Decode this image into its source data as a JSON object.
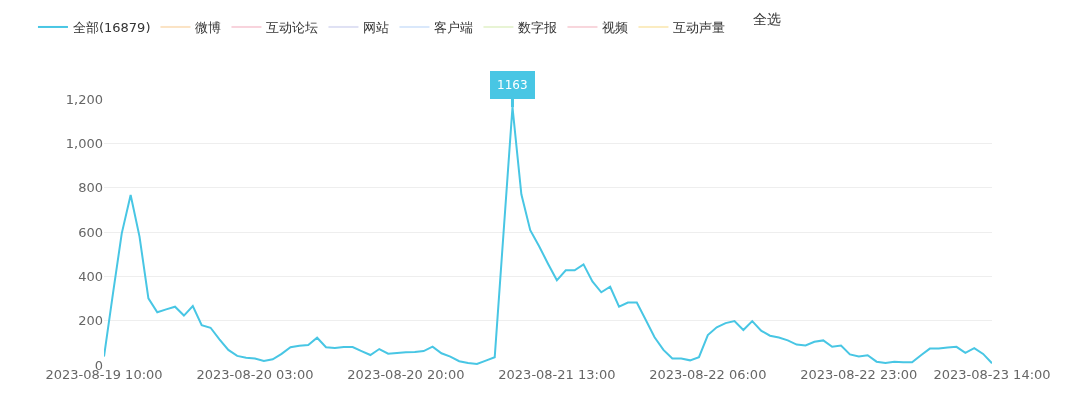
{
  "chart_data": {
    "type": "line",
    "legend": "top left",
    "grid": "y",
    "line_style": "solid",
    "ylim": [
      0,
      1200
    ],
    "yticks": [
      {
        "value": 0,
        "label": "0"
      },
      {
        "value": 200,
        "label": "200"
      },
      {
        "value": 400,
        "label": "400"
      },
      {
        "value": 600,
        "label": "600"
      },
      {
        "value": 800,
        "label": "800"
      },
      {
        "value": 1000,
        "label": "1,000"
      },
      {
        "value": 1200,
        "label": "1,200"
      }
    ],
    "xlim": [
      "2023-08-19T10:00",
      "2023-08-23T14:00"
    ],
    "xticks": [
      {
        "value": "2023-08-19T10:00",
        "label": "2023-08-19 10:00"
      },
      {
        "value": "2023-08-20T03:00",
        "label": "2023-08-20 03:00"
      },
      {
        "value": "2023-08-20T20:00",
        "label": "2023-08-20 20:00"
      },
      {
        "value": "2023-08-21T13:00",
        "label": "2023-08-21 13:00"
      },
      {
        "value": "2023-08-22T06:00",
        "label": "2023-08-22 06:00"
      },
      {
        "value": "2023-08-22T23:00",
        "label": "2023-08-22 23:00"
      },
      {
        "value": "2023-08-23T14:00",
        "label": "2023-08-23 14:00"
      }
    ],
    "x": [
      "2023-08-19T10:00",
      "2023-08-19T11:00",
      "2023-08-19T12:00",
      "2023-08-19T13:00",
      "2023-08-19T14:00",
      "2023-08-19T15:00",
      "2023-08-19T16:00",
      "2023-08-19T17:00",
      "2023-08-19T18:00",
      "2023-08-19T19:00",
      "2023-08-19T20:00",
      "2023-08-19T21:00",
      "2023-08-19T22:00",
      "2023-08-19T23:00",
      "2023-08-20T00:00",
      "2023-08-20T01:00",
      "2023-08-20T02:00",
      "2023-08-20T03:00",
      "2023-08-20T04:00",
      "2023-08-20T05:00",
      "2023-08-20T06:00",
      "2023-08-20T07:00",
      "2023-08-20T08:00",
      "2023-08-20T09:00",
      "2023-08-20T10:00",
      "2023-08-20T11:00",
      "2023-08-20T12:00",
      "2023-08-20T13:00",
      "2023-08-20T14:00",
      "2023-08-20T15:00",
      "2023-08-20T16:00",
      "2023-08-20T17:00",
      "2023-08-20T18:00",
      "2023-08-20T19:00",
      "2023-08-20T20:00",
      "2023-08-20T21:00",
      "2023-08-20T22:00",
      "2023-08-20T23:00",
      "2023-08-21T00:00",
      "2023-08-21T01:00",
      "2023-08-21T02:00",
      "2023-08-21T03:00",
      "2023-08-21T04:00",
      "2023-08-21T05:00",
      "2023-08-21T06:00",
      "2023-08-21T07:00",
      "2023-08-21T08:00",
      "2023-08-21T09:00",
      "2023-08-21T10:00",
      "2023-08-21T11:00",
      "2023-08-21T12:00",
      "2023-08-21T13:00",
      "2023-08-21T14:00",
      "2023-08-21T15:00",
      "2023-08-21T16:00",
      "2023-08-21T17:00",
      "2023-08-21T18:00",
      "2023-08-21T19:00",
      "2023-08-21T20:00",
      "2023-08-21T21:00",
      "2023-08-21T22:00",
      "2023-08-21T23:00",
      "2023-08-22T00:00",
      "2023-08-22T01:00",
      "2023-08-22T02:00",
      "2023-08-22T03:00",
      "2023-08-22T04:00",
      "2023-08-22T05:00",
      "2023-08-22T06:00",
      "2023-08-22T07:00",
      "2023-08-22T08:00",
      "2023-08-22T09:00",
      "2023-08-22T10:00",
      "2023-08-22T11:00",
      "2023-08-22T12:00",
      "2023-08-22T13:00",
      "2023-08-22T14:00",
      "2023-08-22T15:00",
      "2023-08-22T16:00",
      "2023-08-22T17:00",
      "2023-08-22T18:00",
      "2023-08-22T19:00",
      "2023-08-22T20:00",
      "2023-08-22T21:00",
      "2023-08-22T22:00",
      "2023-08-22T23:00",
      "2023-08-23T00:00",
      "2023-08-23T01:00",
      "2023-08-23T02:00",
      "2023-08-23T03:00",
      "2023-08-23T04:00",
      "2023-08-23T05:00",
      "2023-08-23T06:00",
      "2023-08-23T07:00",
      "2023-08-23T08:00",
      "2023-08-23T09:00",
      "2023-08-23T10:00",
      "2023-08-23T11:00",
      "2023-08-23T12:00",
      "2023-08-23T13:00",
      "2023-08-23T14:00"
    ],
    "series": [
      {
        "name": "全部(16879)",
        "color": "#48c6e4",
        "values": [
          38,
          320,
          594,
          767,
          579,
          301,
          238,
          251,
          263,
          223,
          266,
          180,
          168,
          116,
          68,
          41,
          33,
          29,
          18,
          26,
          50,
          80,
          87,
          90,
          123,
          80,
          77,
          81,
          81,
          63,
          45,
          72,
          51,
          54,
          57,
          59,
          63,
          83,
          53,
          38,
          17,
          9,
          5,
          20,
          35,
          600,
          1163,
          770,
          608,
          536,
          457,
          382,
          427,
          427,
          454,
          377,
          328,
          353,
          263,
          282,
          282,
          204,
          125,
          68,
          29,
          29,
          21,
          35,
          135,
          170,
          189,
          198,
          158,
          198,
          155,
          132,
          124,
          111,
          92,
          88,
          105,
          111,
          82,
          88,
          48,
          38,
          44,
          15,
          9,
          15,
          12,
          12,
          44,
          74,
          74,
          79,
          82,
          55,
          76,
          50,
          8
        ]
      },
      {
        "name": "微博",
        "color": "#fbe3c4",
        "values": [
          null,
          null,
          null,
          null,
          null,
          null,
          null,
          null,
          null,
          null,
          null,
          null,
          null,
          null,
          null,
          null,
          null,
          null,
          null,
          null,
          null,
          null,
          null,
          null,
          null,
          null,
          null,
          null,
          null,
          null,
          null,
          null,
          null,
          null,
          null,
          null,
          null,
          null,
          null,
          null,
          null,
          null,
          null,
          null,
          null,
          null,
          null,
          null,
          null,
          null,
          null,
          null,
          null,
          null,
          null,
          null,
          null,
          null,
          null,
          null,
          null,
          null,
          null,
          null,
          null,
          null,
          null,
          null,
          null,
          null,
          null,
          null,
          null,
          null,
          null,
          null,
          null,
          null,
          null,
          null,
          null,
          null,
          null,
          null,
          null,
          null,
          null,
          null,
          null,
          null,
          null,
          null,
          null,
          null,
          null,
          null,
          null,
          null,
          null,
          null,
          null
        ]
      },
      {
        "name": "互动论坛",
        "color": "#f8d3dc",
        "values": [
          null,
          null,
          null,
          null,
          null,
          null,
          null,
          null,
          null,
          null,
          null,
          null,
          null,
          null,
          null,
          null,
          null,
          null,
          null,
          null,
          null,
          null,
          null,
          null,
          null,
          null,
          null,
          null,
          null,
          null,
          null,
          null,
          null,
          null,
          null,
          null,
          null,
          null,
          null,
          null,
          null,
          null,
          null,
          null,
          null,
          null,
          null,
          null,
          null,
          null,
          null,
          null,
          null,
          null,
          null,
          null,
          null,
          null,
          null,
          null,
          null,
          null,
          null,
          null,
          null,
          null,
          null,
          null,
          null,
          null,
          null,
          null,
          null,
          null,
          null,
          null,
          null,
          null,
          null,
          null,
          null,
          null,
          null,
          null,
          null,
          null,
          null,
          null,
          null,
          null,
          null,
          null,
          null,
          null,
          null,
          null,
          null,
          null,
          null,
          null,
          null
        ]
      },
      {
        "name": "网站",
        "color": "#dfe1f4",
        "values": [
          null,
          null,
          null,
          null,
          null,
          null,
          null,
          null,
          null,
          null,
          null,
          null,
          null,
          null,
          null,
          null,
          null,
          null,
          null,
          null,
          null,
          null,
          null,
          null,
          null,
          null,
          null,
          null,
          null,
          null,
          null,
          null,
          null,
          null,
          null,
          null,
          null,
          null,
          null,
          null,
          null,
          null,
          null,
          null,
          null,
          null,
          null,
          null,
          null,
          null,
          null,
          null,
          null,
          null,
          null,
          null,
          null,
          null,
          null,
          null,
          null,
          null,
          null,
          null,
          null,
          null,
          null,
          null,
          null,
          null,
          null,
          null,
          null,
          null,
          null,
          null,
          null,
          null,
          null,
          null,
          null,
          null,
          null,
          null,
          null,
          null,
          null,
          null,
          null,
          null,
          null,
          null,
          null,
          null,
          null,
          null,
          null,
          null,
          null,
          null,
          null
        ]
      },
      {
        "name": "客户端",
        "color": "#d9e8fb",
        "values": [
          null,
          null,
          null,
          null,
          null,
          null,
          null,
          null,
          null,
          null,
          null,
          null,
          null,
          null,
          null,
          null,
          null,
          null,
          null,
          null,
          null,
          null,
          null,
          null,
          null,
          null,
          null,
          null,
          null,
          null,
          null,
          null,
          null,
          null,
          null,
          null,
          null,
          null,
          null,
          null,
          null,
          null,
          null,
          null,
          null,
          null,
          null,
          null,
          null,
          null,
          null,
          null,
          null,
          null,
          null,
          null,
          null,
          null,
          null,
          null,
          null,
          null,
          null,
          null,
          null,
          null,
          null,
          null,
          null,
          null,
          null,
          null,
          null,
          null,
          null,
          null,
          null,
          null,
          null,
          null,
          null,
          null,
          null,
          null,
          null,
          null,
          null,
          null,
          null,
          null,
          null,
          null,
          null,
          null,
          null,
          null,
          null,
          null,
          null,
          null,
          null
        ]
      },
      {
        "name": "数字报",
        "color": "#e8f4d4",
        "values": [
          null,
          null,
          null,
          null,
          null,
          null,
          null,
          null,
          null,
          null,
          null,
          null,
          null,
          null,
          null,
          null,
          null,
          null,
          null,
          null,
          null,
          null,
          null,
          null,
          null,
          null,
          null,
          null,
          null,
          null,
          null,
          null,
          null,
          null,
          null,
          null,
          null,
          null,
          null,
          null,
          null,
          null,
          null,
          null,
          null,
          null,
          null,
          null,
          null,
          null,
          null,
          null,
          null,
          null,
          null,
          null,
          null,
          null,
          null,
          null,
          null,
          null,
          null,
          null,
          null,
          null,
          null,
          null,
          null,
          null,
          null,
          null,
          null,
          null,
          null,
          null,
          null,
          null,
          null,
          null,
          null,
          null,
          null,
          null,
          null,
          null,
          null,
          null,
          null,
          null,
          null,
          null,
          null,
          null,
          null,
          null,
          null,
          null,
          null,
          null,
          null
        ]
      },
      {
        "name": "视频",
        "color": "#f8d6dc",
        "values": [
          null,
          null,
          null,
          null,
          null,
          null,
          null,
          null,
          null,
          null,
          null,
          null,
          null,
          null,
          null,
          null,
          null,
          null,
          null,
          null,
          null,
          null,
          null,
          null,
          null,
          null,
          null,
          null,
          null,
          null,
          null,
          null,
          null,
          null,
          null,
          null,
          null,
          null,
          null,
          null,
          null,
          null,
          null,
          null,
          null,
          null,
          null,
          null,
          null,
          null,
          null,
          null,
          null,
          null,
          null,
          null,
          null,
          null,
          null,
          null,
          null,
          null,
          null,
          null,
          null,
          null,
          null,
          null,
          null,
          null,
          null,
          null,
          null,
          null,
          null,
          null,
          null,
          null,
          null,
          null,
          null,
          null,
          null,
          null,
          null,
          null,
          null,
          null,
          null,
          null,
          null,
          null,
          null,
          null,
          null,
          null,
          null,
          null,
          null,
          null,
          null
        ]
      },
      {
        "name": "互动声量",
        "color": "#fbecc0",
        "values": [
          null,
          null,
          null,
          null,
          null,
          null,
          null,
          null,
          null,
          null,
          null,
          null,
          null,
          null,
          null,
          null,
          null,
          null,
          null,
          null,
          null,
          null,
          null,
          null,
          null,
          null,
          null,
          null,
          null,
          null,
          null,
          null,
          null,
          null,
          null,
          null,
          null,
          null,
          null,
          null,
          null,
          null,
          null,
          null,
          null,
          null,
          null,
          null,
          null,
          null,
          null,
          null,
          null,
          null,
          null,
          null,
          null,
          null,
          null,
          null,
          null,
          null,
          null,
          null,
          null,
          null,
          null,
          null,
          null,
          null,
          null,
          null,
          null,
          null,
          null,
          null,
          null,
          null,
          null,
          null,
          null,
          null,
          null,
          null,
          null,
          null,
          null,
          null,
          null,
          null,
          null,
          null,
          null,
          null,
          null,
          null,
          null,
          null,
          null,
          null,
          null
        ]
      }
    ],
    "annotations": [
      {
        "text": "1163",
        "x": "2023-08-21T08:00",
        "y": 1163
      },
      "全选"
    ]
  }
}
